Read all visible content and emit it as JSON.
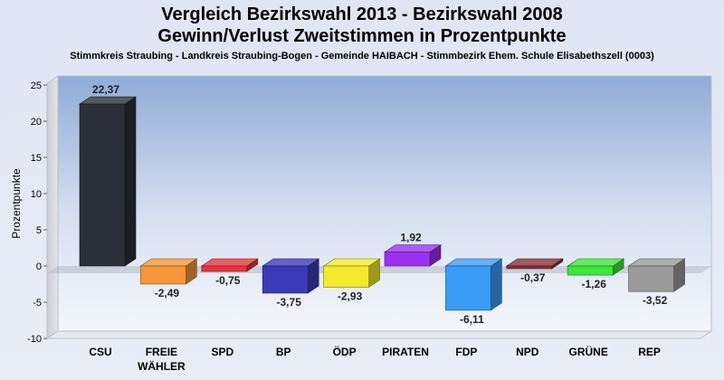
{
  "chart_data": {
    "type": "bar",
    "title": "Vergleich Bezirkswahl 2013 - Bezirkswahl 2008",
    "subtitle": "Gewinn/Verlust Zweitstimmen in Prozentpunkte",
    "caption": "Stimmkreis Straubing - Landkreis Straubing-Bogen - Gemeinde HAIBACH - Stimmbezirk Ehem. Schule Elisabethszell (0003)",
    "ylabel": "Prozentpunkte",
    "ylim": [
      -10,
      25
    ],
    "yticks": [
      25,
      20,
      15,
      10,
      5,
      0,
      -5,
      -10
    ],
    "grid": false,
    "categories": [
      "CSU",
      "FREIE WÄHLER",
      "SPD",
      "BP",
      "ÖDP",
      "PIRATEN",
      "FDP",
      "NPD",
      "GRÜNE",
      "REP"
    ],
    "category_lines": [
      [
        "CSU"
      ],
      [
        "FREIE",
        "WÄHLER"
      ],
      [
        "SPD"
      ],
      [
        "BP"
      ],
      [
        "ÖDP"
      ],
      [
        "PIRATEN"
      ],
      [
        "FDP"
      ],
      [
        "NPD"
      ],
      [
        "GRÜNE"
      ],
      [
        "REP"
      ]
    ],
    "values": [
      22.37,
      -2.49,
      -0.75,
      -3.75,
      -2.93,
      1.92,
      -6.11,
      -0.37,
      -1.26,
      -3.52
    ],
    "value_labels": [
      "22,37",
      "-2,49",
      "-0,75",
      "-3,75",
      "-2,93",
      "1,92",
      "-6,11",
      "-0,37",
      "-1,26",
      "-3,52"
    ],
    "colors": [
      "#2b2f38",
      "#f5963a",
      "#e8343e",
      "#3a3ab8",
      "#f2ea2a",
      "#9b30f0",
      "#3a9cf7",
      "#8a2e38",
      "#3ce63a",
      "#9a9a9a"
    ]
  }
}
